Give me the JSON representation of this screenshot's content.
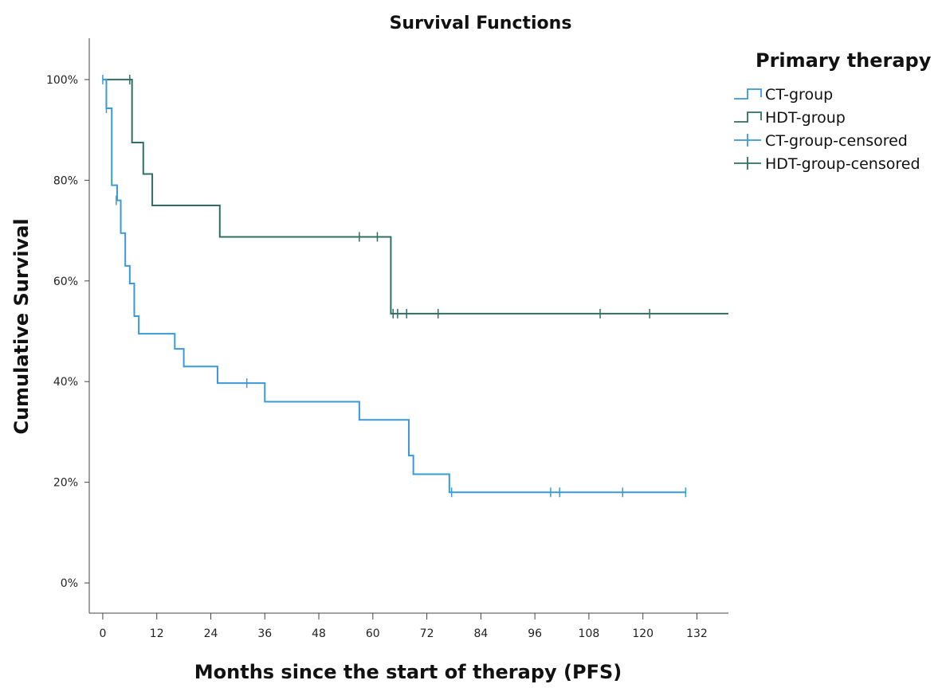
{
  "chart_data": {
    "type": "line",
    "subtype": "kaplan-meier-step",
    "title": "Survival Functions",
    "xlabel": "Months since the start of therapy (PFS)",
    "ylabel": "Cumulative Survival",
    "xlim": [
      -3,
      139
    ],
    "ylim": [
      -6,
      106
    ],
    "x_ticks": [
      0,
      12,
      24,
      36,
      48,
      60,
      72,
      84,
      96,
      108,
      120,
      132
    ],
    "y_ticks": [
      0,
      20,
      40,
      60,
      80,
      100
    ],
    "y_tick_labels": [
      "0%",
      "20%",
      "40%",
      "60%",
      "80%",
      "100%"
    ],
    "grid": false,
    "legend_title": "Primary therapy",
    "legend_position": "top-right",
    "legend_entries": [
      "CT-group",
      "HDT-group",
      "CT-group-censored",
      "HDT-group-censored"
    ],
    "colors": {
      "CT-group": "#3a9ad9",
      "HDT-group": "#2f6f63"
    },
    "series": [
      {
        "name": "HDT-group",
        "color": "#2f6f63",
        "steps": [
          [
            0,
            100
          ],
          [
            6.5,
            87.5
          ],
          [
            9,
            81.25
          ],
          [
            11,
            75
          ],
          [
            26,
            68.75
          ],
          [
            64,
            53.5
          ],
          [
            139,
            53.5
          ]
        ],
        "censored": [
          [
            6,
            100
          ],
          [
            57,
            68.75
          ],
          [
            61,
            68.75
          ],
          [
            64.5,
            53.5
          ],
          [
            65.5,
            53.5
          ],
          [
            67.5,
            53.5
          ],
          [
            74.5,
            53.5
          ],
          [
            110.5,
            53.5
          ],
          [
            121.5,
            53.5
          ]
        ]
      },
      {
        "name": "CT-group",
        "color": "#3a9ad9",
        "steps": [
          [
            0,
            100
          ],
          [
            0.8,
            94.3
          ],
          [
            2,
            79
          ],
          [
            3.2,
            76
          ],
          [
            4,
            69.5
          ],
          [
            5,
            63
          ],
          [
            6,
            59.5
          ],
          [
            7,
            53
          ],
          [
            8,
            49.5
          ],
          [
            16,
            46.5
          ],
          [
            18,
            43
          ],
          [
            25.5,
            39.7
          ],
          [
            36,
            36
          ],
          [
            57,
            32.4
          ],
          [
            68,
            25.3
          ],
          [
            69,
            21.6
          ],
          [
            77,
            18
          ],
          [
            129.5,
            18
          ]
        ],
        "censored": [
          [
            0,
            100
          ],
          [
            0.8,
            94.3
          ],
          [
            3,
            76
          ],
          [
            32,
            39.7
          ],
          [
            77.5,
            18
          ],
          [
            99.5,
            18
          ],
          [
            101.5,
            18
          ],
          [
            115.5,
            18
          ],
          [
            129.5,
            18
          ]
        ]
      }
    ]
  }
}
